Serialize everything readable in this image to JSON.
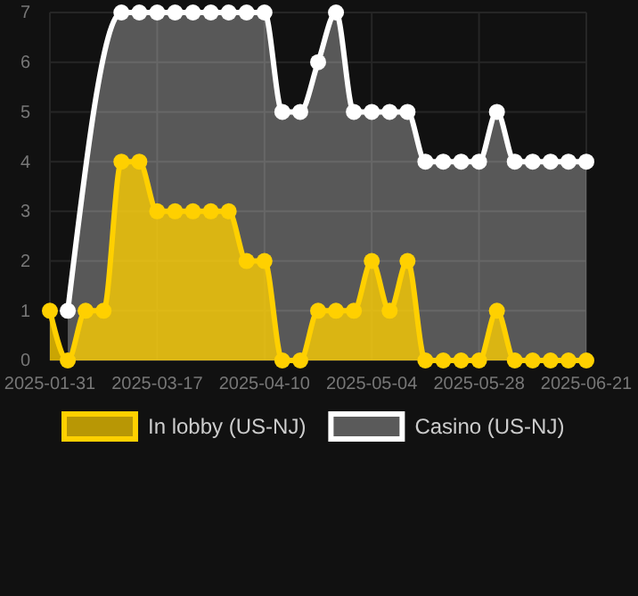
{
  "chart_data": {
    "type": "area",
    "categories": [
      "2025-01-31",
      null,
      null,
      null,
      null,
      null,
      "2025-03-17",
      null,
      null,
      null,
      null,
      null,
      "2025-04-10",
      null,
      null,
      null,
      null,
      null,
      "2025-05-04",
      null,
      null,
      null,
      null,
      null,
      "2025-05-28",
      null,
      null,
      null,
      null,
      null,
      "2025-06-21"
    ],
    "series": [
      {
        "name": "In lobby (US-NJ)",
        "color": "#ffd000",
        "values": [
          1,
          0,
          1,
          1,
          4,
          4,
          3,
          3,
          3,
          3,
          3,
          2,
          2,
          0,
          0,
          1,
          1,
          1,
          2,
          1,
          2,
          0,
          0,
          0,
          0,
          1,
          0,
          0,
          0,
          0,
          0
        ]
      },
      {
        "name": "Casino (US-NJ)",
        "color": "#ffffff",
        "values": [
          null,
          1,
          null,
          null,
          7,
          7,
          7,
          7,
          7,
          7,
          7,
          7,
          7,
          5,
          5,
          6,
          7,
          5,
          5,
          5,
          5,
          4,
          4,
          4,
          4,
          5,
          4,
          4,
          4,
          4,
          4
        ]
      }
    ],
    "ylim": [
      0,
      7
    ],
    "yticks": [
      0,
      1,
      2,
      3,
      4,
      5,
      6,
      7
    ],
    "grid": true,
    "legend": "bottom",
    "marker": "circle",
    "line_style": "solid"
  }
}
